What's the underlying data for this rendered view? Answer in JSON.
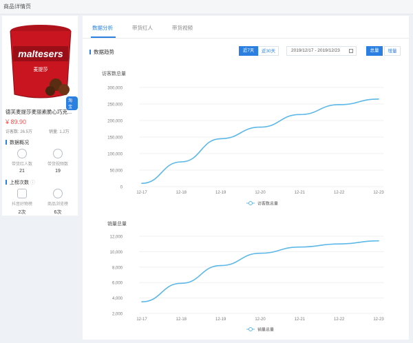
{
  "window": {
    "title": "商品详情页"
  },
  "product": {
    "name": "德芙麦提莎麦丽素脆心巧克...",
    "price": "¥ 89.90",
    "visits": "访客数: 26.5万",
    "sales": "销量: 1.2万",
    "badge": "淘宝",
    "brand_text": "maltesers",
    "sub_brand": "麦提莎"
  },
  "overview": {
    "title": "数据概况",
    "stats": [
      {
        "label": "带货红人数",
        "value": "21",
        "icon": "user-icon"
      },
      {
        "label": "带货视频数",
        "value": "19",
        "icon": "play-icon"
      }
    ]
  },
  "list_rank": {
    "title": "上榜次数",
    "stats": [
      {
        "label": "抖音好物榜",
        "value": "2次",
        "icon": "bag-icon"
      },
      {
        "label": "商品浏览榜",
        "value": "6次",
        "icon": "eye-icon"
      }
    ]
  },
  "tabs": [
    "数据分析",
    "带货红人",
    "带货视频"
  ],
  "trend": {
    "title": "数据趋势",
    "range_buttons": [
      "近7天",
      "近30天"
    ],
    "date_range": "2019/12/17 - 2019/12/23",
    "mode_buttons": [
      "总量",
      "增量"
    ]
  },
  "colors": {
    "accent": "#2b7fe0",
    "line": "#5bb8e8",
    "price": "#ff4a4a"
  },
  "chart_data": [
    {
      "type": "line",
      "title": "访客数总量",
      "x": [
        "12-17",
        "12-18",
        "12-19",
        "12-20",
        "12-21",
        "12-22",
        "12-23"
      ],
      "series": [
        {
          "name": "访客数总量",
          "values": [
            10000,
            75000,
            145000,
            180000,
            218000,
            248000,
            265000
          ]
        }
      ],
      "ylim": [
        0,
        300000
      ],
      "yticks": [
        "0",
        "50,000",
        "100,000",
        "150,000",
        "200,000",
        "250,000",
        "300,000"
      ],
      "ytick_values": [
        0,
        50000,
        100000,
        150000,
        200000,
        250000,
        300000
      ],
      "legend_position": "bottom-center",
      "grid": true
    },
    {
      "type": "line",
      "title": "销量总量",
      "x": [
        "12-17",
        "12-18",
        "12-19",
        "12-20",
        "12-21",
        "12-22",
        "12-23"
      ],
      "series": [
        {
          "name": "销量总量",
          "values": [
            3500,
            5900,
            8200,
            9800,
            10600,
            11000,
            11400
          ]
        }
      ],
      "ylim": [
        2000,
        12000
      ],
      "yticks": [
        "2,000",
        "4,000",
        "6,000",
        "8,000",
        "10,000",
        "12,000"
      ],
      "ytick_values": [
        2000,
        4000,
        6000,
        8000,
        10000,
        12000
      ],
      "legend_position": "bottom-center",
      "grid": true
    }
  ]
}
